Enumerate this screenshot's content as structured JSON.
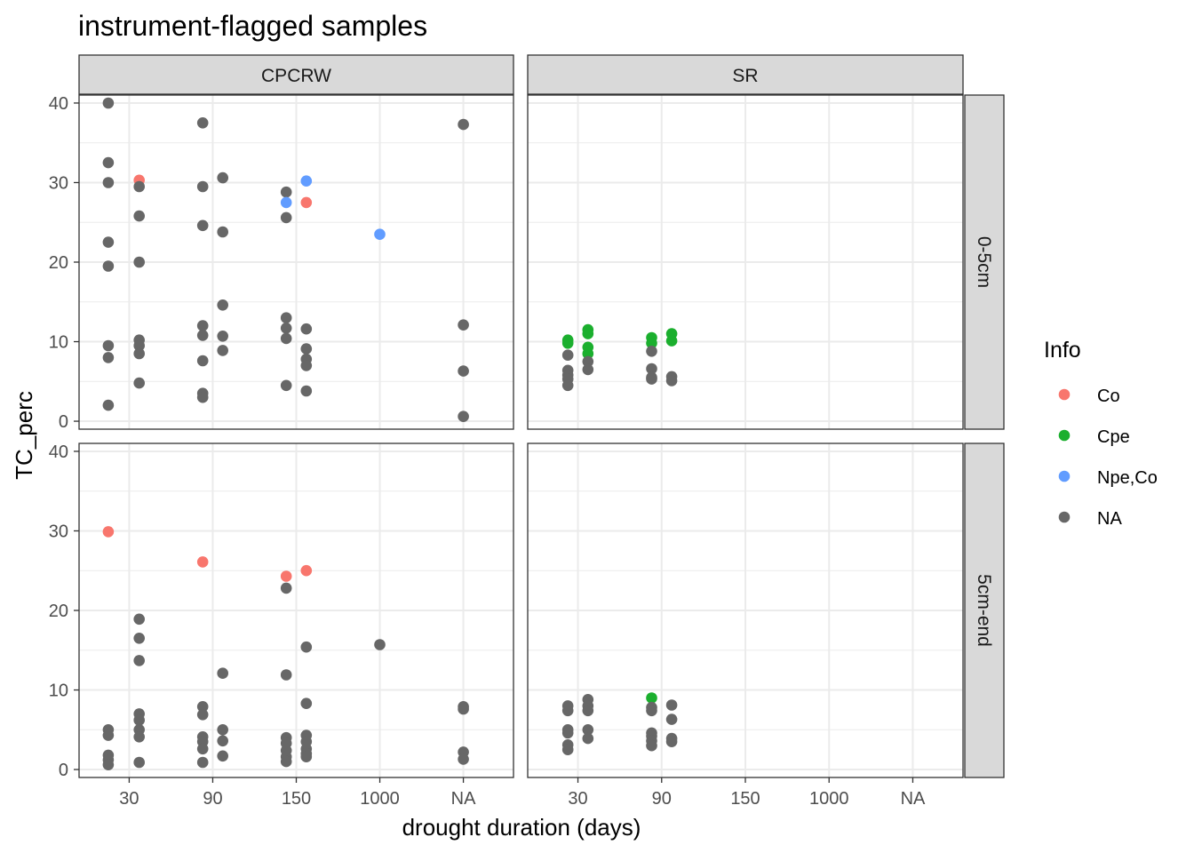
{
  "chart_data": {
    "type": "scatter",
    "title": "instrument-flagged samples",
    "xlabel": "drought duration (days)",
    "ylabel": "TC_perc",
    "x_categories": [
      "30",
      "90",
      "150",
      "1000",
      "NA"
    ],
    "y_ticks": [
      0,
      10,
      20,
      30,
      40
    ],
    "ylim": [
      -1,
      41
    ],
    "grid": true,
    "legend": {
      "title": "Info",
      "position": "right",
      "entries": [
        {
          "label": "Co",
          "color": "#F8766D"
        },
        {
          "label": "Cpe",
          "color": "#1BAF2E"
        },
        {
          "label": "Npe,Co",
          "color": "#619CFF"
        },
        {
          "label": "NA",
          "color": "#676767"
        }
      ]
    },
    "facet_columns": [
      "CPCRW",
      "SR"
    ],
    "facet_rows": [
      "0-5cm",
      "5cm-end"
    ],
    "panels": [
      {
        "column": "CPCRW",
        "row": "0-5cm",
        "points": [
          {
            "x": 0.75,
            "y": 40.0,
            "info": "NA"
          },
          {
            "x": 0.75,
            "y": 32.5,
            "info": "NA"
          },
          {
            "x": 0.75,
            "y": 30.0,
            "info": "NA"
          },
          {
            "x": 0.75,
            "y": 22.5,
            "info": "NA"
          },
          {
            "x": 0.75,
            "y": 19.5,
            "info": "NA"
          },
          {
            "x": 0.75,
            "y": 9.5,
            "info": "NA"
          },
          {
            "x": 0.75,
            "y": 8.0,
            "info": "NA"
          },
          {
            "x": 0.75,
            "y": 2.0,
            "info": "NA"
          },
          {
            "x": 1.12,
            "y": 30.3,
            "info": "Co"
          },
          {
            "x": 1.12,
            "y": 29.5,
            "info": "NA"
          },
          {
            "x": 1.12,
            "y": 25.8,
            "info": "NA"
          },
          {
            "x": 1.12,
            "y": 20.0,
            "info": "NA"
          },
          {
            "x": 1.12,
            "y": 10.2,
            "info": "NA"
          },
          {
            "x": 1.12,
            "y": 9.5,
            "info": "NA"
          },
          {
            "x": 1.12,
            "y": 8.5,
            "info": "NA"
          },
          {
            "x": 1.12,
            "y": 4.8,
            "info": "NA"
          },
          {
            "x": 1.88,
            "y": 37.5,
            "info": "NA"
          },
          {
            "x": 1.88,
            "y": 29.5,
            "info": "NA"
          },
          {
            "x": 1.88,
            "y": 24.6,
            "info": "NA"
          },
          {
            "x": 1.88,
            "y": 12.0,
            "info": "NA"
          },
          {
            "x": 1.88,
            "y": 10.8,
            "info": "NA"
          },
          {
            "x": 1.88,
            "y": 7.6,
            "info": "NA"
          },
          {
            "x": 1.88,
            "y": 3.5,
            "info": "NA"
          },
          {
            "x": 1.88,
            "y": 3.0,
            "info": "NA"
          },
          {
            "x": 2.12,
            "y": 30.6,
            "info": "NA"
          },
          {
            "x": 2.12,
            "y": 23.8,
            "info": "NA"
          },
          {
            "x": 2.12,
            "y": 14.6,
            "info": "NA"
          },
          {
            "x": 2.12,
            "y": 10.7,
            "info": "NA"
          },
          {
            "x": 2.12,
            "y": 8.9,
            "info": "NA"
          },
          {
            "x": 2.88,
            "y": 28.8,
            "info": "NA"
          },
          {
            "x": 2.88,
            "y": 27.5,
            "info": "Npe,Co"
          },
          {
            "x": 2.88,
            "y": 25.6,
            "info": "NA"
          },
          {
            "x": 2.88,
            "y": 13.0,
            "info": "NA"
          },
          {
            "x": 2.88,
            "y": 11.7,
            "info": "NA"
          },
          {
            "x": 2.88,
            "y": 10.4,
            "info": "NA"
          },
          {
            "x": 2.88,
            "y": 4.5,
            "info": "NA"
          },
          {
            "x": 3.12,
            "y": 30.2,
            "info": "Npe,Co"
          },
          {
            "x": 3.12,
            "y": 27.5,
            "info": "Co"
          },
          {
            "x": 3.12,
            "y": 11.6,
            "info": "NA"
          },
          {
            "x": 3.12,
            "y": 9.1,
            "info": "NA"
          },
          {
            "x": 3.12,
            "y": 7.8,
            "info": "NA"
          },
          {
            "x": 3.12,
            "y": 7.0,
            "info": "NA"
          },
          {
            "x": 3.12,
            "y": 3.8,
            "info": "NA"
          },
          {
            "x": 4.0,
            "y": 23.5,
            "info": "Npe,Co"
          },
          {
            "x": 5.0,
            "y": 37.3,
            "info": "NA"
          },
          {
            "x": 5.0,
            "y": 12.1,
            "info": "NA"
          },
          {
            "x": 5.0,
            "y": 6.3,
            "info": "NA"
          },
          {
            "x": 5.0,
            "y": 0.6,
            "info": "NA"
          }
        ]
      },
      {
        "column": "SR",
        "row": "0-5cm",
        "points": [
          {
            "x": 0.88,
            "y": 10.2,
            "info": "Cpe"
          },
          {
            "x": 0.88,
            "y": 9.8,
            "info": "Cpe"
          },
          {
            "x": 0.88,
            "y": 8.3,
            "info": "NA"
          },
          {
            "x": 0.88,
            "y": 6.4,
            "info": "NA"
          },
          {
            "x": 0.88,
            "y": 5.8,
            "info": "NA"
          },
          {
            "x": 0.88,
            "y": 5.3,
            "info": "NA"
          },
          {
            "x": 0.88,
            "y": 4.5,
            "info": "NA"
          },
          {
            "x": 1.12,
            "y": 11.5,
            "info": "Cpe"
          },
          {
            "x": 1.12,
            "y": 11.0,
            "info": "Cpe"
          },
          {
            "x": 1.12,
            "y": 9.3,
            "info": "Cpe"
          },
          {
            "x": 1.12,
            "y": 8.5,
            "info": "Cpe"
          },
          {
            "x": 1.12,
            "y": 7.5,
            "info": "NA"
          },
          {
            "x": 1.12,
            "y": 6.5,
            "info": "NA"
          },
          {
            "x": 1.88,
            "y": 10.5,
            "info": "Cpe"
          },
          {
            "x": 1.88,
            "y": 9.8,
            "info": "Cpe"
          },
          {
            "x": 1.88,
            "y": 8.8,
            "info": "NA"
          },
          {
            "x": 1.88,
            "y": 6.6,
            "info": "NA"
          },
          {
            "x": 1.88,
            "y": 5.5,
            "info": "NA"
          },
          {
            "x": 1.88,
            "y": 5.3,
            "info": "NA"
          },
          {
            "x": 2.12,
            "y": 11.0,
            "info": "Cpe"
          },
          {
            "x": 2.12,
            "y": 10.1,
            "info": "Cpe"
          },
          {
            "x": 2.12,
            "y": 5.6,
            "info": "NA"
          },
          {
            "x": 2.12,
            "y": 5.1,
            "info": "NA"
          }
        ]
      },
      {
        "column": "CPCRW",
        "row": "5cm-end",
        "points": [
          {
            "x": 0.75,
            "y": 29.9,
            "info": "Co"
          },
          {
            "x": 0.75,
            "y": 5.0,
            "info": "NA"
          },
          {
            "x": 0.75,
            "y": 4.3,
            "info": "NA"
          },
          {
            "x": 0.75,
            "y": 1.8,
            "info": "NA"
          },
          {
            "x": 0.75,
            "y": 1.2,
            "info": "NA"
          },
          {
            "x": 0.75,
            "y": 0.6,
            "info": "NA"
          },
          {
            "x": 1.12,
            "y": 18.9,
            "info": "NA"
          },
          {
            "x": 1.12,
            "y": 16.5,
            "info": "NA"
          },
          {
            "x": 1.12,
            "y": 13.7,
            "info": "NA"
          },
          {
            "x": 1.12,
            "y": 7.0,
            "info": "NA"
          },
          {
            "x": 1.12,
            "y": 6.2,
            "info": "NA"
          },
          {
            "x": 1.12,
            "y": 5.0,
            "info": "NA"
          },
          {
            "x": 1.12,
            "y": 4.1,
            "info": "NA"
          },
          {
            "x": 1.12,
            "y": 0.9,
            "info": "NA"
          },
          {
            "x": 1.88,
            "y": 26.1,
            "info": "Co"
          },
          {
            "x": 1.88,
            "y": 7.9,
            "info": "NA"
          },
          {
            "x": 1.88,
            "y": 6.9,
            "info": "NA"
          },
          {
            "x": 1.88,
            "y": 4.1,
            "info": "NA"
          },
          {
            "x": 1.88,
            "y": 3.5,
            "info": "NA"
          },
          {
            "x": 1.88,
            "y": 2.6,
            "info": "NA"
          },
          {
            "x": 1.88,
            "y": 0.9,
            "info": "NA"
          },
          {
            "x": 2.12,
            "y": 12.1,
            "info": "NA"
          },
          {
            "x": 2.12,
            "y": 5.0,
            "info": "NA"
          },
          {
            "x": 2.12,
            "y": 3.6,
            "info": "NA"
          },
          {
            "x": 2.12,
            "y": 1.7,
            "info": "NA"
          },
          {
            "x": 2.88,
            "y": 24.3,
            "info": "Co"
          },
          {
            "x": 2.88,
            "y": 22.8,
            "info": "NA"
          },
          {
            "x": 2.88,
            "y": 11.9,
            "info": "NA"
          },
          {
            "x": 2.88,
            "y": 4.0,
            "info": "NA"
          },
          {
            "x": 2.88,
            "y": 3.3,
            "info": "NA"
          },
          {
            "x": 2.88,
            "y": 2.4,
            "info": "NA"
          },
          {
            "x": 2.88,
            "y": 1.6,
            "info": "NA"
          },
          {
            "x": 2.88,
            "y": 1.0,
            "info": "NA"
          },
          {
            "x": 3.12,
            "y": 25.0,
            "info": "Co"
          },
          {
            "x": 3.12,
            "y": 15.4,
            "info": "NA"
          },
          {
            "x": 3.12,
            "y": 8.3,
            "info": "NA"
          },
          {
            "x": 3.12,
            "y": 4.3,
            "info": "NA"
          },
          {
            "x": 3.12,
            "y": 3.5,
            "info": "NA"
          },
          {
            "x": 3.12,
            "y": 2.6,
            "info": "NA"
          },
          {
            "x": 3.12,
            "y": 2.0,
            "info": "NA"
          },
          {
            "x": 3.12,
            "y": 1.6,
            "info": "NA"
          },
          {
            "x": 4.0,
            "y": 15.7,
            "info": "NA"
          },
          {
            "x": 5.0,
            "y": 7.9,
            "info": "NA"
          },
          {
            "x": 5.0,
            "y": 7.6,
            "info": "NA"
          },
          {
            "x": 5.0,
            "y": 2.2,
            "info": "NA"
          },
          {
            "x": 5.0,
            "y": 1.3,
            "info": "NA"
          }
        ]
      },
      {
        "column": "SR",
        "row": "5cm-end",
        "points": [
          {
            "x": 0.88,
            "y": 8.0,
            "info": "NA"
          },
          {
            "x": 0.88,
            "y": 7.4,
            "info": "NA"
          },
          {
            "x": 0.88,
            "y": 5.0,
            "info": "NA"
          },
          {
            "x": 0.88,
            "y": 4.6,
            "info": "NA"
          },
          {
            "x": 0.88,
            "y": 3.1,
            "info": "NA"
          },
          {
            "x": 0.88,
            "y": 2.5,
            "info": "NA"
          },
          {
            "x": 1.12,
            "y": 8.8,
            "info": "NA"
          },
          {
            "x": 1.12,
            "y": 8.0,
            "info": "NA"
          },
          {
            "x": 1.12,
            "y": 7.4,
            "info": "NA"
          },
          {
            "x": 1.12,
            "y": 5.0,
            "info": "NA"
          },
          {
            "x": 1.12,
            "y": 3.9,
            "info": "NA"
          },
          {
            "x": 1.88,
            "y": 9.0,
            "info": "Cpe"
          },
          {
            "x": 1.88,
            "y": 7.8,
            "info": "NA"
          },
          {
            "x": 1.88,
            "y": 7.4,
            "info": "NA"
          },
          {
            "x": 1.88,
            "y": 4.6,
            "info": "NA"
          },
          {
            "x": 1.88,
            "y": 4.2,
            "info": "NA"
          },
          {
            "x": 1.88,
            "y": 3.6,
            "info": "NA"
          },
          {
            "x": 1.88,
            "y": 3.0,
            "info": "NA"
          },
          {
            "x": 2.12,
            "y": 8.1,
            "info": "NA"
          },
          {
            "x": 2.12,
            "y": 6.3,
            "info": "NA"
          },
          {
            "x": 2.12,
            "y": 3.9,
            "info": "NA"
          },
          {
            "x": 2.12,
            "y": 3.5,
            "info": "NA"
          }
        ]
      }
    ]
  }
}
